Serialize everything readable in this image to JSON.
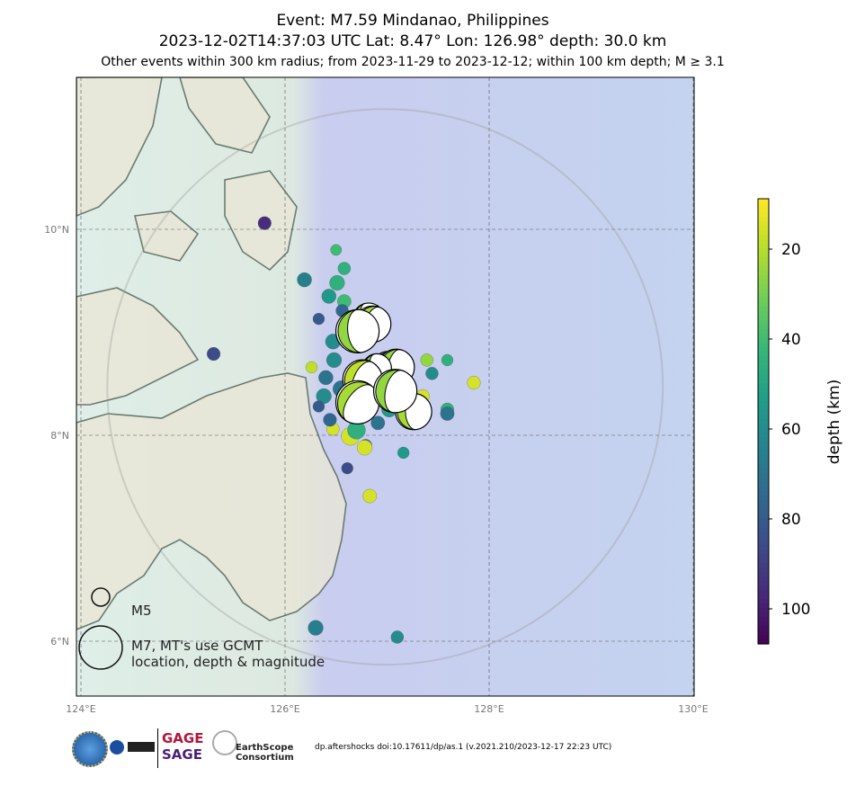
{
  "title": {
    "line1": "Event: M7.59 Mindanao, Philippines",
    "line2": "2023-12-02T14:37:03 UTC Lat: 8.47° Lon: 126.98° depth: 30.0 km",
    "line3": "Other events within 300 km radius; from 2023-11-29 to 2023-12-12; within 100 km depth; M ≥ 3.1"
  },
  "map": {
    "lon_range": [
      123.95,
      130.0
    ],
    "lat_range": [
      5.47,
      11.48
    ],
    "lon_ticks": [
      {
        "v": 124,
        "label": "124°E"
      },
      {
        "v": 126,
        "label": "126°E"
      },
      {
        "v": 128,
        "label": "128°E"
      },
      {
        "v": 130,
        "label": "130°E"
      }
    ],
    "lat_ticks": [
      {
        "v": 10,
        "label": "10°N"
      },
      {
        "v": 8,
        "label": "8°N"
      },
      {
        "v": 6,
        "label": "6°N"
      }
    ],
    "radius_km": 300,
    "center": {
      "lon": 126.98,
      "lat": 8.47
    }
  },
  "events": [
    {
      "lon": 125.8,
      "lat": 10.06,
      "depth": 95,
      "mag": 4.3
    },
    {
      "lon": 125.3,
      "lat": 8.79,
      "depth": 85,
      "mag": 4.3
    },
    {
      "lon": 126.19,
      "lat": 9.51,
      "depth": 65,
      "mag": 4.5
    },
    {
      "lon": 126.5,
      "lat": 9.8,
      "depth": 40,
      "mag": 3.9
    },
    {
      "lon": 126.58,
      "lat": 9.62,
      "depth": 45,
      "mag": 4.2
    },
    {
      "lon": 126.51,
      "lat": 9.48,
      "depth": 45,
      "mag": 4.6
    },
    {
      "lon": 126.43,
      "lat": 9.35,
      "depth": 55,
      "mag": 4.5
    },
    {
      "lon": 126.58,
      "lat": 9.3,
      "depth": 40,
      "mag": 4.4
    },
    {
      "lon": 126.33,
      "lat": 9.13,
      "depth": 80,
      "mag": 4.0
    },
    {
      "lon": 126.56,
      "lat": 9.21,
      "depth": 75,
      "mag": 4.2
    },
    {
      "lon": 126.26,
      "lat": 8.66,
      "depth": 18,
      "mag": 4.0
    },
    {
      "lon": 127.59,
      "lat": 8.73,
      "depth": 45,
      "mag": 4.0
    },
    {
      "lon": 127.85,
      "lat": 8.51,
      "depth": 15,
      "mag": 4.3
    },
    {
      "lon": 127.59,
      "lat": 8.25,
      "depth": 45,
      "mag": 4.3
    },
    {
      "lon": 127.59,
      "lat": 8.21,
      "depth": 70,
      "mag": 4.4
    },
    {
      "lon": 127.16,
      "lat": 7.83,
      "depth": 55,
      "mag": 4.0
    },
    {
      "lon": 126.61,
      "lat": 7.68,
      "depth": 85,
      "mag": 4.0
    },
    {
      "lon": 126.83,
      "lat": 7.41,
      "depth": 15,
      "mag": 4.4
    },
    {
      "lon": 126.3,
      "lat": 6.13,
      "depth": 65,
      "mag": 4.6
    },
    {
      "lon": 127.1,
      "lat": 6.04,
      "depth": 60,
      "mag": 4.2
    },
    {
      "lon": 126.79,
      "lat": 7.9,
      "depth": 80,
      "mag": 4.2
    },
    {
      "lon": 126.78,
      "lat": 7.88,
      "depth": 15,
      "mag": 4.6
    },
    {
      "lon": 126.47,
      "lat": 8.06,
      "depth": 15,
      "mag": 4.2
    },
    {
      "lon": 126.64,
      "lat": 7.99,
      "depth": 15,
      "mag": 5.0
    },
    {
      "lon": 126.38,
      "lat": 8.38,
      "depth": 60,
      "mag": 4.6
    },
    {
      "lon": 126.33,
      "lat": 8.28,
      "depth": 80,
      "mag": 4.0
    },
    {
      "lon": 126.44,
      "lat": 8.15,
      "depth": 75,
      "mag": 4.3
    },
    {
      "lon": 126.4,
      "lat": 8.56,
      "depth": 70,
      "mag": 4.5
    },
    {
      "lon": 126.48,
      "lat": 8.73,
      "depth": 60,
      "mag": 4.6
    },
    {
      "lon": 126.47,
      "lat": 8.91,
      "depth": 60,
      "mag": 4.6
    },
    {
      "lon": 126.91,
      "lat": 8.12,
      "depth": 70,
      "mag": 4.4
    },
    {
      "lon": 127.02,
      "lat": 8.25,
      "depth": 55,
      "mag": 4.6
    },
    {
      "lon": 127.35,
      "lat": 8.38,
      "depth": 15,
      "mag": 4.3
    },
    {
      "lon": 127.44,
      "lat": 8.6,
      "depth": 60,
      "mag": 4.2
    },
    {
      "lon": 127.39,
      "lat": 8.73,
      "depth": 25,
      "mag": 4.2
    },
    {
      "lon": 126.55,
      "lat": 8.45,
      "depth": 70,
      "mag": 4.8
    },
    {
      "lon": 126.62,
      "lat": 8.25,
      "depth": 60,
      "mag": 4.7
    },
    {
      "lon": 126.7,
      "lat": 8.05,
      "depth": 45,
      "mag": 5.0
    }
  ],
  "moment_tensors": [
    {
      "lon": 126.82,
      "lat": 9.13,
      "depth": 25,
      "mag": 6.3
    },
    {
      "lon": 126.86,
      "lat": 9.08,
      "depth": 22,
      "mag": 6.6
    },
    {
      "lon": 126.71,
      "lat": 9.01,
      "depth": 25,
      "mag": 7.0
    },
    {
      "lon": 127.01,
      "lat": 8.66,
      "depth": 25,
      "mag": 6.3
    },
    {
      "lon": 127.09,
      "lat": 8.66,
      "depth": 25,
      "mag": 6.6
    },
    {
      "lon": 126.9,
      "lat": 8.65,
      "depth": 28,
      "mag": 6.1
    },
    {
      "lon": 126.76,
      "lat": 8.54,
      "depth": 18,
      "mag": 6.8
    },
    {
      "lon": 127.26,
      "lat": 8.23,
      "depth": 22,
      "mag": 6.6
    },
    {
      "lon": 126.71,
      "lat": 8.32,
      "depth": 22,
      "mag": 7.0
    },
    {
      "lon": 127.08,
      "lat": 8.43,
      "depth": 25,
      "mag": 7.0
    }
  ],
  "legend": {
    "m5_label": "M5",
    "m7_label_line1": "M7, MT's use GCMT",
    "m7_label_line2": "location, depth & magnitude"
  },
  "colorbar": {
    "label": "depth (km)",
    "range": [
      8.8,
      107.8
    ],
    "ticks": [
      20,
      40,
      60,
      80,
      100
    ],
    "colormap": "viridis (reversed)"
  },
  "footer": {
    "doi_text": "dp.aftershocks doi:10.17611/dp/as.1 (v.2021.210/2023-12-17 22:23 UTC)",
    "logos": [
      "NSF",
      "NASA",
      "USGS",
      "GAGE",
      "SAGE",
      "EarthScope Consortium"
    ]
  }
}
